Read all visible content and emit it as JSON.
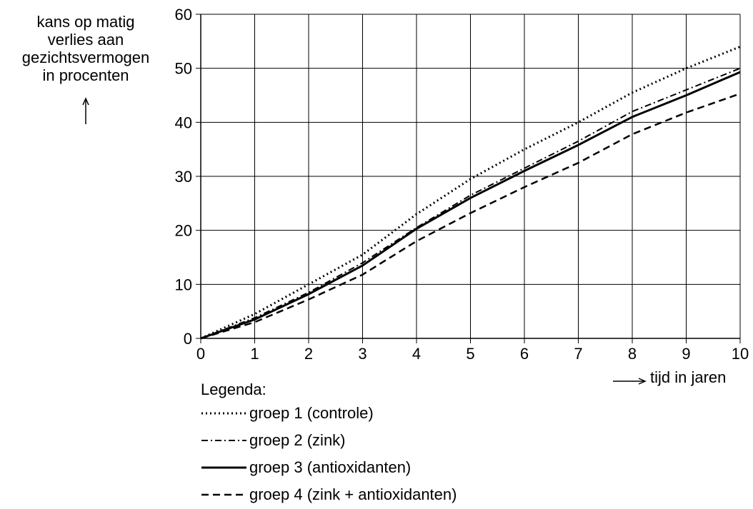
{
  "chart_data": {
    "type": "line",
    "ylabel_lines": [
      "kans op matig",
      "verlies aan",
      "gezichtsvermogen",
      "in procenten"
    ],
    "xlabel": "tijd in jaren",
    "xlim": [
      0,
      10
    ],
    "ylim": [
      0,
      60
    ],
    "x_ticks": [
      0,
      1,
      2,
      3,
      4,
      5,
      6,
      7,
      8,
      9,
      10
    ],
    "y_ticks": [
      0,
      10,
      20,
      30,
      40,
      50,
      60
    ],
    "grid": true,
    "legend_title": "Legenda:",
    "legend_position": "bottom-left",
    "series": [
      {
        "name": "groep 1 (controle)",
        "style": "dotted",
        "x": [
          0,
          1,
          2,
          3,
          4,
          5,
          6,
          7,
          8,
          9,
          10
        ],
        "y": [
          0,
          4.5,
          10,
          15.5,
          23,
          29.5,
          35,
          40,
          45.5,
          50,
          54
        ]
      },
      {
        "name": "groep 2 (zink)",
        "style": "dashdot",
        "x": [
          0,
          1,
          2,
          3,
          4,
          5,
          6,
          7,
          8,
          9,
          10
        ],
        "y": [
          0,
          3.8,
          8.5,
          14,
          20.5,
          26.5,
          31.5,
          36.5,
          42,
          46,
          50
        ]
      },
      {
        "name": "groep 3 (antioxidanten)",
        "style": "solid",
        "x": [
          0,
          1,
          2,
          3,
          4,
          5,
          6,
          7,
          8,
          9,
          10
        ],
        "y": [
          0,
          3.5,
          8.2,
          13.5,
          20.3,
          26,
          31,
          35.8,
          41,
          45,
          49.3
        ]
      },
      {
        "name": "groep 4 (zink + antioxidanten)",
        "style": "dashed",
        "x": [
          0,
          1,
          2,
          3,
          4,
          5,
          6,
          7,
          8,
          9,
          10
        ],
        "y": [
          0,
          3,
          7.2,
          11.8,
          18,
          23.2,
          28,
          32.5,
          37.8,
          41.8,
          45.3
        ]
      }
    ]
  }
}
